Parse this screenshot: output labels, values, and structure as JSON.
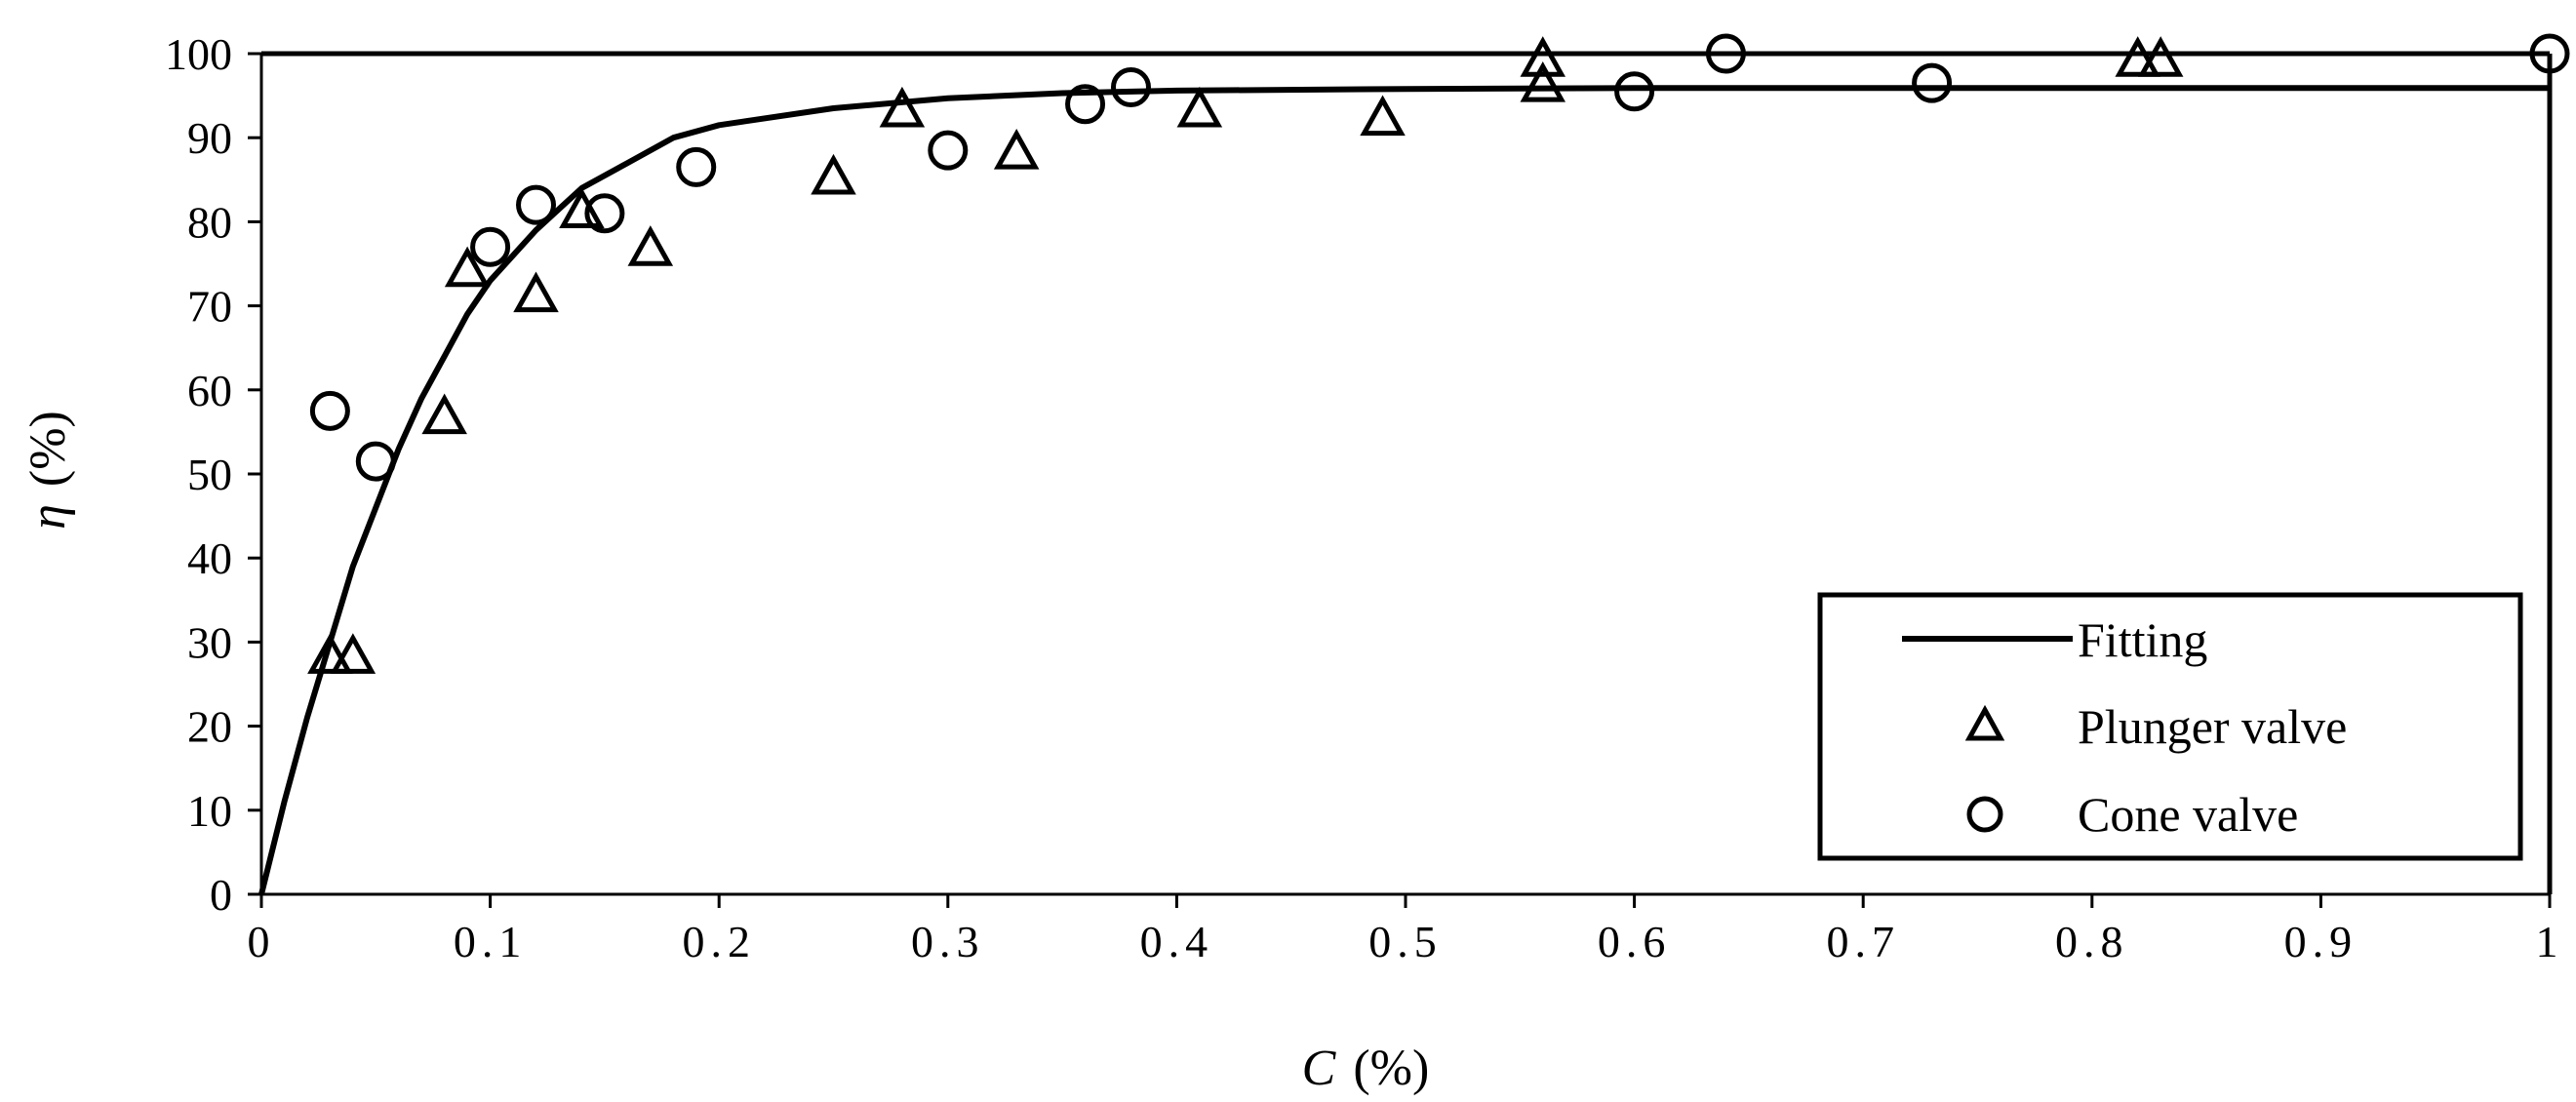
{
  "chart_data": {
    "type": "scatter",
    "title": "",
    "xlabel": {
      "symbol": "C",
      "unit": "(%)"
    },
    "ylabel": {
      "symbol": "η",
      "unit": "(%)"
    },
    "xlim": [
      0,
      1
    ],
    "ylim": [
      0,
      100
    ],
    "x_ticks": [
      "0",
      "0.1",
      "0.2",
      "0.3",
      "0.4",
      "0.5",
      "0.6",
      "0.7",
      "0.8",
      "0.9",
      "1"
    ],
    "y_ticks": [
      "0",
      "10",
      "20",
      "30",
      "40",
      "50",
      "60",
      "70",
      "80",
      "90",
      "100"
    ],
    "grid": false,
    "legend_position": "bottom-right",
    "fitting": {
      "name": "Fitting",
      "marker": "line",
      "points": [
        {
          "x": 0,
          "y": 0
        },
        {
          "x": 0.01,
          "y": 11
        },
        {
          "x": 0.02,
          "y": 21
        },
        {
          "x": 0.03,
          "y": 30
        },
        {
          "x": 0.04,
          "y": 39
        },
        {
          "x": 0.05,
          "y": 46
        },
        {
          "x": 0.06,
          "y": 53
        },
        {
          "x": 0.07,
          "y": 59
        },
        {
          "x": 0.08,
          "y": 64
        },
        {
          "x": 0.09,
          "y": 69
        },
        {
          "x": 0.1,
          "y": 73
        },
        {
          "x": 0.12,
          "y": 79
        },
        {
          "x": 0.14,
          "y": 84
        },
        {
          "x": 0.16,
          "y": 87
        },
        {
          "x": 0.18,
          "y": 90
        },
        {
          "x": 0.2,
          "y": 91.5
        },
        {
          "x": 0.25,
          "y": 93.5
        },
        {
          "x": 0.3,
          "y": 94.7
        },
        {
          "x": 0.35,
          "y": 95.3
        },
        {
          "x": 0.4,
          "y": 95.6
        },
        {
          "x": 0.5,
          "y": 95.8
        },
        {
          "x": 0.6,
          "y": 95.9
        },
        {
          "x": 0.8,
          "y": 95.9
        },
        {
          "x": 1.0,
          "y": 95.9
        }
      ]
    },
    "series": [
      {
        "name": "Plunger valve",
        "marker": "triangle",
        "points": [
          {
            "x": 0.03,
            "y": 28.5
          },
          {
            "x": 0.04,
            "y": 28.5
          },
          {
            "x": 0.08,
            "y": 57
          },
          {
            "x": 0.09,
            "y": 74.5
          },
          {
            "x": 0.12,
            "y": 71.5
          },
          {
            "x": 0.14,
            "y": 81.5
          },
          {
            "x": 0.17,
            "y": 77
          },
          {
            "x": 0.25,
            "y": 85.5
          },
          {
            "x": 0.28,
            "y": 93.5
          },
          {
            "x": 0.33,
            "y": 88.5
          },
          {
            "x": 0.41,
            "y": 93.5
          },
          {
            "x": 0.49,
            "y": 92.5
          },
          {
            "x": 0.56,
            "y": 99.5
          },
          {
            "x": 0.56,
            "y": 96.5
          },
          {
            "x": 0.82,
            "y": 99.5
          },
          {
            "x": 0.83,
            "y": 99.5
          }
        ]
      },
      {
        "name": "Cone valve",
        "marker": "circle",
        "points": [
          {
            "x": 0.03,
            "y": 57.5
          },
          {
            "x": 0.05,
            "y": 51.5
          },
          {
            "x": 0.1,
            "y": 77
          },
          {
            "x": 0.12,
            "y": 82
          },
          {
            "x": 0.15,
            "y": 81
          },
          {
            "x": 0.19,
            "y": 86.5
          },
          {
            "x": 0.3,
            "y": 88.5
          },
          {
            "x": 0.36,
            "y": 94
          },
          {
            "x": 0.38,
            "y": 96
          },
          {
            "x": 0.6,
            "y": 95.5
          },
          {
            "x": 0.64,
            "y": 100
          },
          {
            "x": 0.73,
            "y": 96.5
          },
          {
            "x": 1.0,
            "y": 100
          }
        ]
      }
    ]
  }
}
